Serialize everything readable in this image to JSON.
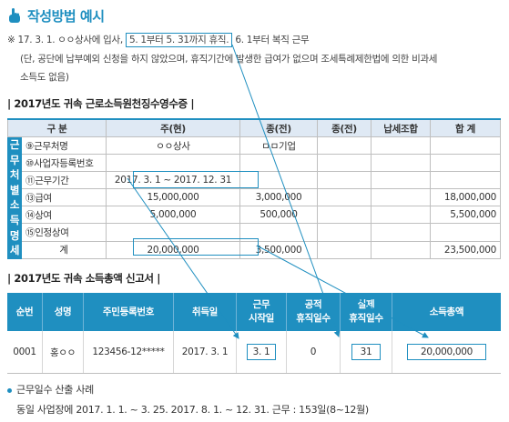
{
  "title": "작성방법 예시",
  "note": {
    "mark": "※",
    "line1_a": "17. 3. 1. ㅇㅇ상사에 입사,",
    "line1_box": "5. 1부터 5. 31까지 휴직.",
    "line1_b": "6. 1부터 복직 근무",
    "line2": "(단, 공단에 납부예외 신청을 하지 않았으며, 휴직기간에 발생한 급여가 없으며 조세특례제한법에 의한 비과세",
    "line3": "소득도 없음)"
  },
  "section1": {
    "title": "| 2017년도 귀속 근로소득원천징수영수증 |",
    "vertical_label": [
      "근",
      "무",
      "처",
      "별",
      "소",
      "득",
      "명",
      "세"
    ],
    "headers": [
      "구 분",
      "주(현)",
      "종(전)",
      "종(전)",
      "납세조합",
      "합 계"
    ],
    "rows": [
      {
        "label": "⑨근무처명",
        "main": "ㅇㅇ상사",
        "prev1": "ㅁㅁ기업",
        "prev2": "",
        "union": "",
        "total": ""
      },
      {
        "label": "⑩사업자등록번호",
        "main": "",
        "prev1": "",
        "prev2": "",
        "union": "",
        "total": ""
      },
      {
        "label": "⑪근무기간",
        "main": "2017. 3. 1 ~ 2017. 12. 31",
        "prev1": "",
        "prev2": "",
        "union": "",
        "total": ""
      },
      {
        "label": "⑬급여",
        "main": "15,000,000",
        "prev1": "3,000,000",
        "prev2": "",
        "union": "",
        "total": "18,000,000"
      },
      {
        "label": "⑭상여",
        "main": "5,000,000",
        "prev1": "500,000",
        "prev2": "",
        "union": "",
        "total": "5,500,000"
      },
      {
        "label": "⑮인정상여",
        "main": "",
        "prev1": "",
        "prev2": "",
        "union": "",
        "total": ""
      },
      {
        "label": "계",
        "main": "20,000,000",
        "prev1": "3,500,000",
        "prev2": "",
        "union": "",
        "total": "23,500,000"
      }
    ]
  },
  "section2": {
    "title": "| 2017년도 귀속 소득총액 신고서 |",
    "headers": [
      "순번",
      "성명",
      "주민등록번호",
      "취득일",
      "근무\n시작일",
      "공적\n휴직일수",
      "실제\n휴직일수",
      "소득총액"
    ],
    "row": {
      "no": "0001",
      "name": "홍ㅇㅇ",
      "rrn": "123456-12*****",
      "acquired": "2017. 3. 1",
      "start": "3. 1",
      "public_leave": "0",
      "actual_leave": "31",
      "income": "20,000,000"
    }
  },
  "bottom": {
    "bullet": "근무일수 산출 사례",
    "line": "동일 사업장에 2017. 1. 1. ~ 3. 25. 2017. 8. 1. ~ 12. 31. 근무 : 153일(8~12월)"
  },
  "colors": {
    "accent": "#1f8fc0",
    "header_bg": "#dfe9f4"
  }
}
